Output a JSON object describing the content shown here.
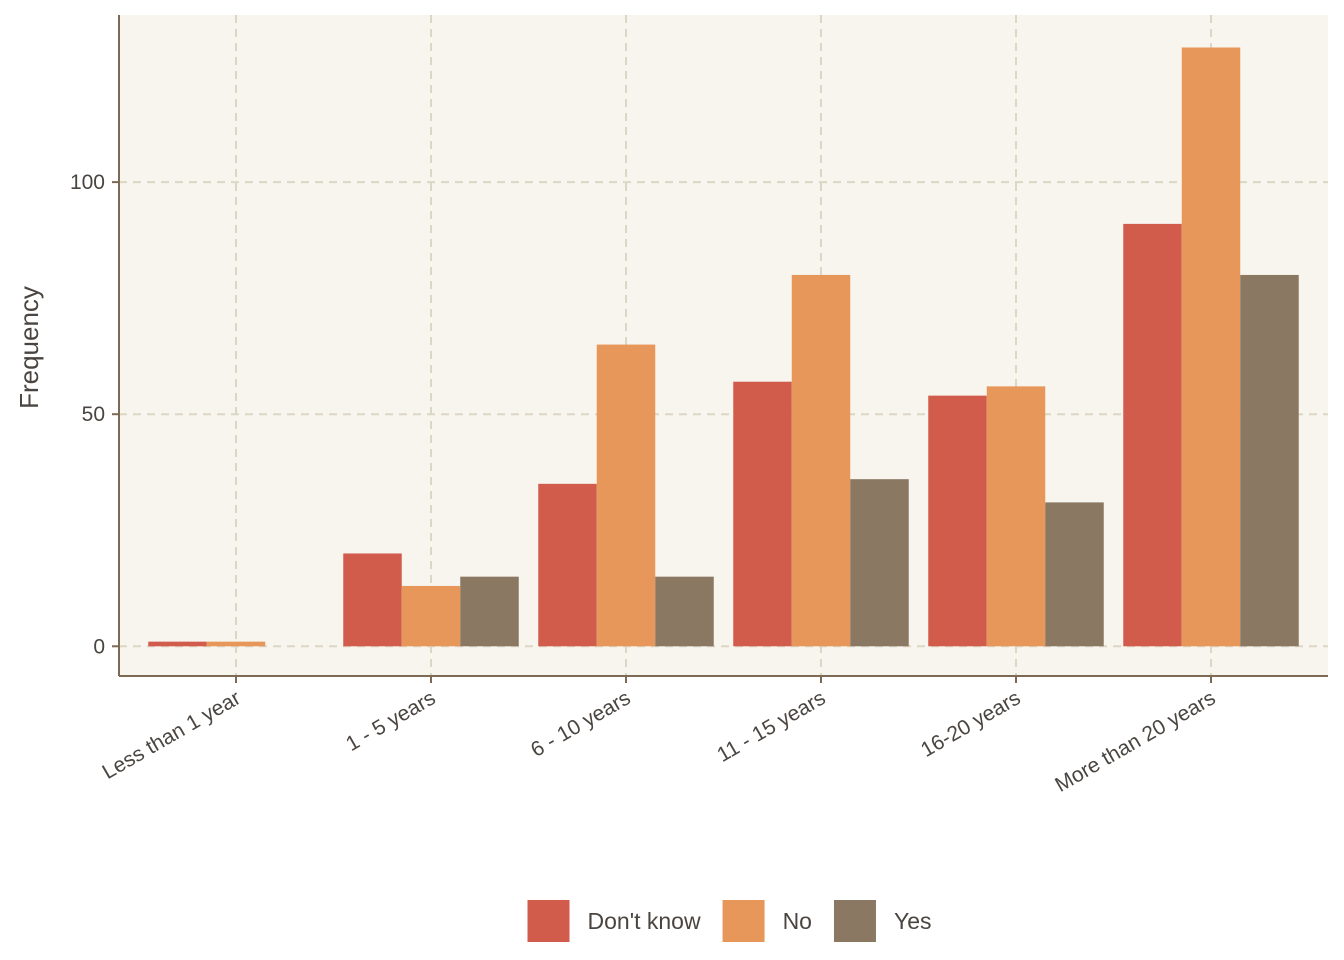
{
  "chart_data": {
    "type": "bar",
    "title": "",
    "xlabel": "",
    "ylabel": "Frequency",
    "categories": [
      "Less than 1 year",
      "1 - 5 years",
      "6 - 10 years",
      "11 - 15 years",
      "16-20 years",
      "More than 20 years"
    ],
    "series": [
      {
        "name": "Don't know",
        "color": "#D15C4B",
        "values": [
          1,
          20,
          35,
          57,
          54,
          91
        ]
      },
      {
        "name": "No",
        "color": "#E8975B",
        "values": [
          1,
          13,
          65,
          80,
          56,
          129
        ]
      },
      {
        "name": "Yes",
        "color": "#8A7862",
        "values": [
          0,
          15,
          15,
          36,
          31,
          80
        ]
      }
    ],
    "yticks": [
      0,
      50,
      100
    ],
    "ylim": [
      -6.4,
      136
    ],
    "grid": true,
    "legend_position": "bottom",
    "colors": {
      "panel_background": "#F8F5EF",
      "grid": "#DCD6C4",
      "axis": "#7D6A55",
      "text": "#4A4540"
    }
  }
}
